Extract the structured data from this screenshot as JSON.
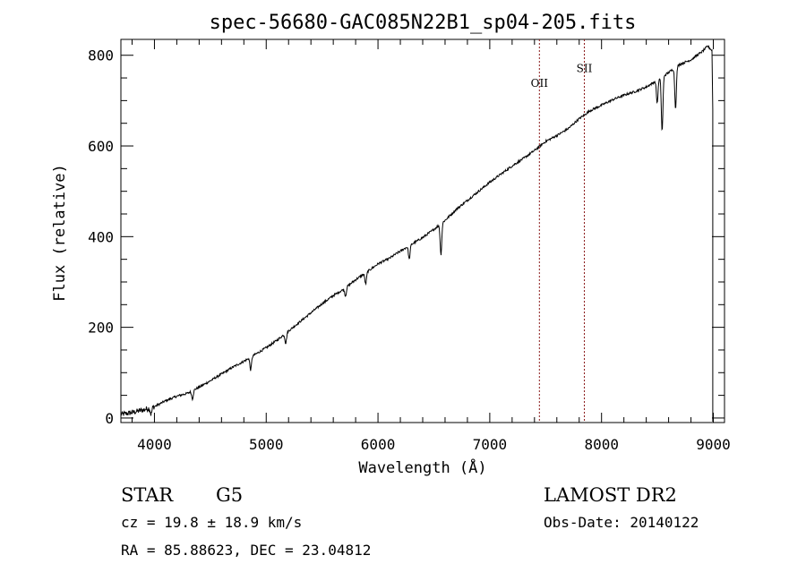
{
  "chart_data": {
    "type": "line",
    "title": "spec-56680-GAC085N22B1_sp04-205.fits",
    "xlabel": "Wavelength (Å)",
    "ylabel": "Flux (relative)",
    "xlim": [
      3700,
      9100
    ],
    "ylim": [
      -10,
      835
    ],
    "x_ticks": [
      4000,
      5000,
      6000,
      7000,
      8000,
      9000
    ],
    "x_tick_labels": [
      "4000",
      "5000",
      "6000",
      "7000",
      "8000",
      "9000"
    ],
    "y_ticks": [
      0,
      200,
      400,
      600,
      800
    ],
    "y_tick_labels": [
      "0",
      "200",
      "400",
      "600",
      "800"
    ],
    "series": [
      {
        "name": "spectrum",
        "x": [
          3700,
          3800,
          3900,
          4000,
          4100,
          4200,
          4300,
          4400,
          4500,
          4600,
          4700,
          4800,
          4900,
          5000,
          5100,
          5200,
          5300,
          5400,
          5500,
          5600,
          5700,
          5800,
          5900,
          6000,
          6100,
          6200,
          6300,
          6400,
          6500,
          6600,
          6700,
          6800,
          6900,
          7000,
          7100,
          7200,
          7300,
          7400,
          7500,
          7600,
          7700,
          7800,
          7900,
          8000,
          8100,
          8200,
          8300,
          8400,
          8500,
          8600,
          8700,
          8800,
          8900,
          8950,
          8990
        ],
        "y": [
          8,
          12,
          18,
          25,
          38,
          48,
          55,
          68,
          82,
          97,
          112,
          125,
          140,
          155,
          172,
          192,
          212,
          232,
          252,
          270,
          285,
          305,
          322,
          340,
          352,
          368,
          383,
          398,
          416,
          436,
          460,
          480,
          500,
          520,
          538,
          556,
          572,
          590,
          610,
          623,
          638,
          660,
          678,
          690,
          702,
          712,
          720,
          730,
          745,
          762,
          780,
          790,
          808,
          820,
          810
        ]
      }
    ],
    "absorption_dips": [
      {
        "x": 3970,
        "depth": 15
      },
      {
        "x": 4340,
        "depth": 18
      },
      {
        "x": 4861,
        "depth": 28
      },
      {
        "x": 5175,
        "depth": 22
      },
      {
        "x": 5710,
        "depth": 18
      },
      {
        "x": 5890,
        "depth": 25
      },
      {
        "x": 6280,
        "depth": 30
      },
      {
        "x": 6563,
        "depth": 68
      },
      {
        "x": 8498,
        "depth": 50
      },
      {
        "x": 8542,
        "depth": 120
      },
      {
        "x": 8662,
        "depth": 90
      }
    ],
    "reference_lines": [
      {
        "label": "OII",
        "x": 7444,
        "label_y": 730
      },
      {
        "label": "SII",
        "x": 7846,
        "label_y": 763
      }
    ],
    "ref_line_color": "#8b1a1a",
    "line_color": "#000000"
  },
  "info": {
    "object_class": "STAR",
    "subclass": "G5",
    "survey": "LAMOST DR2",
    "redshift": "cz = 19.8 ± 18.9 km/s",
    "obs_date": "Obs-Date: 20140122",
    "coords": "RA =  85.88623, DEC =  23.04812"
  }
}
